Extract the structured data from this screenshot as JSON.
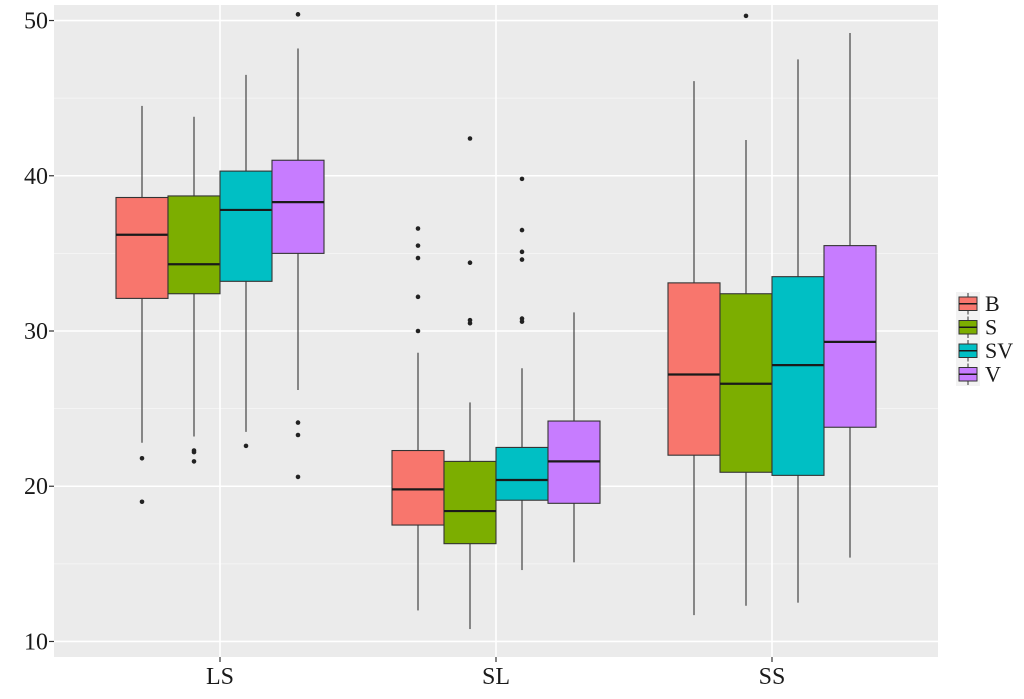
{
  "chart_data": {
    "type": "boxplot",
    "title": "",
    "xlabel": "",
    "ylabel": "",
    "ylim": [
      9,
      51
    ],
    "y_ticks": [
      10,
      20,
      30,
      40,
      50
    ],
    "grid": true,
    "legend_position": "right",
    "categories": [
      "LS",
      "SL",
      "SS"
    ],
    "series": [
      {
        "name": "B",
        "color": "#F8766D",
        "boxes": [
          {
            "category": "LS",
            "whisker_low": 22.8,
            "q1": 32.1,
            "median": 36.2,
            "q3": 38.6,
            "whisker_high": 44.5,
            "outliers": [
              21.8,
              19.0
            ]
          },
          {
            "category": "SL",
            "whisker_low": 12.0,
            "q1": 17.5,
            "median": 19.8,
            "q3": 22.3,
            "whisker_high": 28.6,
            "outliers": [
              30.0,
              32.2,
              34.7,
              35.5,
              36.6
            ]
          },
          {
            "category": "SS",
            "whisker_low": 11.7,
            "q1": 22.0,
            "median": 27.2,
            "q3": 33.1,
            "whisker_high": 46.1,
            "outliers": []
          }
        ]
      },
      {
        "name": "S",
        "color": "#7CAE00",
        "boxes": [
          {
            "category": "LS",
            "whisker_low": 23.2,
            "q1": 32.4,
            "median": 34.3,
            "q3": 38.7,
            "whisker_high": 43.8,
            "outliers": [
              22.3,
              22.2,
              21.6
            ]
          },
          {
            "category": "SL",
            "whisker_low": 10.8,
            "q1": 16.3,
            "median": 18.4,
            "q3": 21.6,
            "whisker_high": 25.4,
            "outliers": [
              30.5,
              30.7,
              34.4,
              42.4
            ]
          },
          {
            "category": "SS",
            "whisker_low": 12.3,
            "q1": 20.9,
            "median": 26.6,
            "q3": 32.4,
            "whisker_high": 42.3,
            "outliers": [
              50.3
            ]
          }
        ]
      },
      {
        "name": "SV",
        "color": "#00BFC4",
        "boxes": [
          {
            "category": "LS",
            "whisker_low": 23.5,
            "q1": 33.2,
            "median": 37.8,
            "q3": 40.3,
            "whisker_high": 46.5,
            "outliers": [
              22.6
            ]
          },
          {
            "category": "SL",
            "whisker_low": 14.6,
            "q1": 19.1,
            "median": 20.4,
            "q3": 22.5,
            "whisker_high": 27.6,
            "outliers": [
              30.6,
              30.8,
              34.6,
              35.1,
              36.5,
              39.8
            ]
          },
          {
            "category": "SS",
            "whisker_low": 12.5,
            "q1": 20.7,
            "median": 27.8,
            "q3": 33.5,
            "whisker_high": 47.5,
            "outliers": []
          }
        ]
      },
      {
        "name": "V",
        "color": "#C77CFF",
        "boxes": [
          {
            "category": "LS",
            "whisker_low": 26.2,
            "q1": 35.0,
            "median": 38.3,
            "q3": 41.0,
            "whisker_high": 48.2,
            "outliers": [
              24.1,
              23.3,
              20.6,
              50.4
            ]
          },
          {
            "category": "SL",
            "whisker_low": 15.1,
            "q1": 18.9,
            "median": 21.6,
            "q3": 24.2,
            "whisker_high": 31.2,
            "outliers": []
          },
          {
            "category": "SS",
            "whisker_low": 15.4,
            "q1": 23.8,
            "median": 29.3,
            "q3": 35.5,
            "whisker_high": 49.2,
            "outliers": []
          }
        ]
      }
    ]
  }
}
